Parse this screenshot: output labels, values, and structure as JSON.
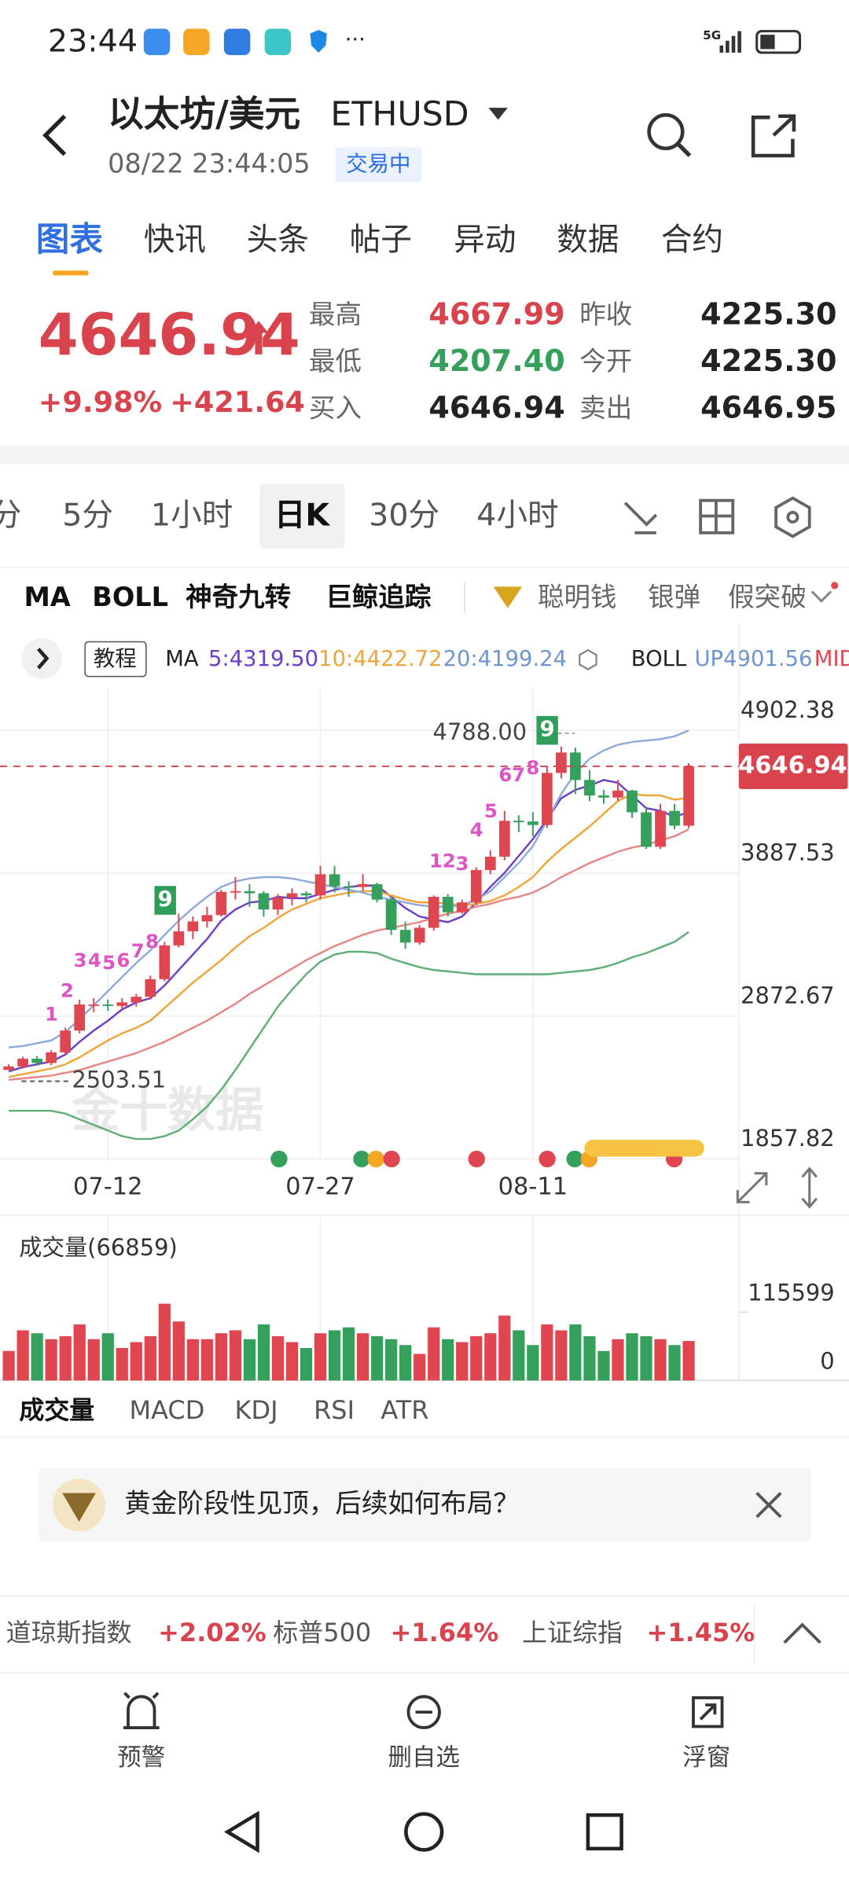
{
  "status_bar": {
    "time": "23:44",
    "network": "5G"
  },
  "header": {
    "title": "以太坊/美元",
    "symbol": "ETHUSD",
    "datetime": "08/22 23:44:05",
    "status": "交易中"
  },
  "tabs": [
    "图表",
    "快讯",
    "头条",
    "帖子",
    "异动",
    "数据",
    "合约"
  ],
  "quote": {
    "price": "4646.94",
    "change_pct": "+9.98%",
    "change": "+421.64",
    "stats": [
      {
        "label": "最高",
        "value": "4667.99"
      },
      {
        "label": "最低",
        "value": "4207.40"
      },
      {
        "label": "买入",
        "value": "4646.94"
      },
      {
        "label": "昨收",
        "value": "4225.30"
      },
      {
        "label": "今开",
        "value": "4225.30"
      },
      {
        "label": "卖出",
        "value": "4646.95"
      }
    ]
  },
  "periods": [
    "分",
    "5分",
    "1小时",
    "日K",
    "30分",
    "4小时"
  ],
  "indicators": [
    "MA",
    "BOLL",
    "神奇九转",
    "巨鲸追踪",
    "聪明钱",
    "银弹",
    "假突破"
  ],
  "legend": {
    "tutorial": "教程",
    "ma": "MA",
    "ma5": "5:4319.50",
    "ma10": "10:4422.72",
    "ma20": "20:4199.24",
    "boll": "BOLL",
    "boll_up": "UP4901.56",
    "boll_mid": "MID"
  },
  "chart_data": {
    "type": "candlestick",
    "categories": [
      null,
      null,
      null,
      null,
      null,
      null,
      null,
      "07-12",
      null,
      null,
      null,
      null,
      null,
      null,
      null,
      null,
      null,
      null,
      null,
      null,
      null,
      null,
      "07-27",
      null,
      null,
      null,
      null,
      null,
      null,
      null,
      null,
      null,
      null,
      null,
      null,
      null,
      null,
      "08-11",
      null,
      null,
      null,
      null,
      null,
      null,
      null,
      null,
      null,
      null,
      null
    ],
    "open": [
      2490,
      2515,
      2570,
      2540,
      2615,
      2770,
      2955,
      2955,
      2945,
      2970,
      3010,
      3135,
      3375,
      3475,
      3545,
      3590,
      3755,
      3760,
      3745,
      3630,
      3715,
      3745,
      3730,
      3880,
      3795,
      3790,
      3810,
      3700,
      3485,
      3395,
      3500,
      3720,
      3610,
      3680,
      3910,
      4005,
      4260,
      4255,
      4230,
      4600,
      4745,
      4550,
      4440,
      4425,
      4475,
      4320,
      4075,
      4330,
      4225.3
    ],
    "high": [
      2530,
      2585,
      2590,
      2630,
      2790,
      2990,
      3000,
      2990,
      3000,
      3030,
      3160,
      3400,
      3600,
      3580,
      3650,
      3770,
      3860,
      3810,
      3760,
      3740,
      3780,
      3760,
      3940,
      3940,
      3830,
      3880,
      3820,
      3720,
      3545,
      3520,
      3730,
      3740,
      3700,
      3930,
      4050,
      4330,
      4300,
      4320,
      4650,
      4788,
      4780,
      4620,
      4480,
      4550,
      4480,
      4360,
      4380,
      4380,
      4667.99
    ],
    "low": [
      2503.51,
      2500,
      2520,
      2525,
      2600,
      2750,
      2900,
      2910,
      2920,
      2940,
      2990,
      3120,
      3360,
      3420,
      3500,
      3580,
      3700,
      3650,
      3580,
      3590,
      3660,
      3680,
      3700,
      3750,
      3720,
      3760,
      3680,
      3450,
      3350,
      3380,
      3480,
      3580,
      3600,
      3660,
      3880,
      3980,
      4180,
      4150,
      4210,
      4560,
      4450,
      4400,
      4380,
      4400,
      4280,
      4060,
      4060,
      4200,
      4207.4
    ],
    "close": [
      2515,
      2570,
      2540,
      2615,
      2770,
      2955,
      2955,
      2945,
      2970,
      3010,
      3135,
      3375,
      3475,
      3545,
      3590,
      3755,
      3760,
      3745,
      3630,
      3715,
      3745,
      3730,
      3880,
      3795,
      3790,
      3810,
      3700,
      3485,
      3395,
      3500,
      3720,
      3610,
      3680,
      3910,
      4005,
      4260,
      4255,
      4230,
      4600,
      4745,
      4550,
      4440,
      4425,
      4475,
      4320,
      4075,
      4330,
      4225.3,
      4646.94
    ],
    "up_color": "#e0464f",
    "down_color": "#35a05c",
    "ylim": [
      1857.82,
      4902.38
    ],
    "yticks": [
      4902.38,
      3887.53,
      2872.67,
      1857.82
    ],
    "grid": true,
    "series": [
      {
        "color": "#6b3fc8",
        "values": [
          2480,
          2510,
          2530,
          2550,
          2600,
          2690,
          2770,
          2840,
          2920,
          2970,
          3000,
          3090,
          3200,
          3310,
          3420,
          3550,
          3630,
          3680,
          3690,
          3720,
          3710,
          3710,
          3740,
          3770,
          3790,
          3800,
          3800,
          3720,
          3640,
          3580,
          3560,
          3540,
          3580,
          3680,
          3790,
          3890,
          4010,
          4130,
          4270,
          4420,
          4480,
          4510,
          4550,
          4530,
          4440,
          4350,
          4330,
          4290,
          4319.5
        ]
      },
      {
        "color": "#f0a53a",
        "values": [
          2440,
          2460,
          2480,
          2500,
          2530,
          2580,
          2640,
          2700,
          2750,
          2790,
          2840,
          2930,
          3020,
          3110,
          3190,
          3270,
          3360,
          3440,
          3500,
          3570,
          3630,
          3670,
          3710,
          3730,
          3750,
          3760,
          3760,
          3730,
          3700,
          3680,
          3680,
          3670,
          3660,
          3670,
          3690,
          3730,
          3790,
          3860,
          3970,
          4060,
          4140,
          4220,
          4310,
          4400,
          4450,
          4440,
          4440,
          4410,
          4422.72
        ]
      },
      {
        "color": "#e88585",
        "values": [
          2420,
          2430,
          2440,
          2450,
          2470,
          2490,
          2520,
          2550,
          2580,
          2610,
          2650,
          2690,
          2740,
          2790,
          2840,
          2900,
          2960,
          3030,
          3090,
          3150,
          3210,
          3270,
          3320,
          3370,
          3410,
          3450,
          3480,
          3500,
          3520,
          3540,
          3570,
          3600,
          3620,
          3650,
          3670,
          3700,
          3720,
          3750,
          3800,
          3860,
          3910,
          3960,
          4000,
          4040,
          4070,
          4090,
          4120,
          4150,
          4199.24
        ]
      },
      {
        "color": "#8eaadb",
        "values": [
          2650,
          2660,
          2680,
          2700,
          2760,
          2850,
          2950,
          3050,
          3150,
          3250,
          3340,
          3450,
          3550,
          3640,
          3720,
          3790,
          3830,
          3850,
          3860,
          3860,
          3850,
          3830,
          3810,
          3790,
          3770,
          3750,
          3720,
          3700,
          3680,
          3660,
          3650,
          3650,
          3660,
          3700,
          3760,
          3860,
          3960,
          4080,
          4260,
          4450,
          4600,
          4700,
          4760,
          4800,
          4820,
          4830,
          4840,
          4860,
          4901.56
        ]
      },
      {
        "color": "#5fae76",
        "values": [
          2200,
          2200,
          2200,
          2200,
          2180,
          2140,
          2100,
          2060,
          2020,
          2000,
          2000,
          2020,
          2060,
          2140,
          2230,
          2350,
          2490,
          2640,
          2790,
          2940,
          3060,
          3170,
          3260,
          3310,
          3330,
          3330,
          3320,
          3280,
          3250,
          3220,
          3200,
          3190,
          3180,
          3170,
          3170,
          3170,
          3170,
          3170,
          3170,
          3180,
          3190,
          3200,
          3220,
          3250,
          3290,
          3320,
          3360,
          3400,
          3470
        ]
      }
    ],
    "last_price": 4646.94,
    "high_marker": {
      "value": 4788,
      "label": "4788.00"
    },
    "low_marker": {
      "value": 2503.51,
      "label": "2503.51"
    },
    "td_up": [
      [
        "1",
        "2",
        "3",
        "4",
        "5",
        "6",
        "7",
        "8",
        "9"
      ],
      [
        "1",
        "2",
        "3",
        "4",
        "5",
        "6",
        "7",
        "8",
        "9"
      ]
    ],
    "watermark": "金十数据",
    "volume": {
      "title": "成交量(66859)",
      "ylim": [
        0,
        115599
      ],
      "yticks": [
        115599,
        0
      ],
      "values": [
        50000,
        85000,
        80000,
        70000,
        75000,
        95000,
        70000,
        80000,
        55000,
        65000,
        75000,
        130000,
        100000,
        70000,
        70000,
        80000,
        85000,
        70000,
        95000,
        75000,
        65000,
        55000,
        80000,
        85000,
        90000,
        80000,
        75000,
        70000,
        60000,
        45000,
        90000,
        70000,
        65000,
        75000,
        80000,
        110000,
        85000,
        60000,
        95000,
        85000,
        95000,
        75000,
        50000,
        70000,
        80000,
        75000,
        70000,
        60000,
        66859
      ]
    }
  },
  "sub_tabs": [
    "成交量",
    "MACD",
    "KDJ",
    "RSI",
    "ATR"
  ],
  "banner": "黄金阶段性见顶，后续如何布局？",
  "tickers": [
    {
      "name": "道琼斯指数",
      "change": "+2.02%"
    },
    {
      "name": "标普500",
      "change": "+1.64%"
    },
    {
      "name": "上证综指",
      "change": "+1.45%"
    }
  ],
  "nav": [
    "预警",
    "删自选",
    "浮窗"
  ]
}
